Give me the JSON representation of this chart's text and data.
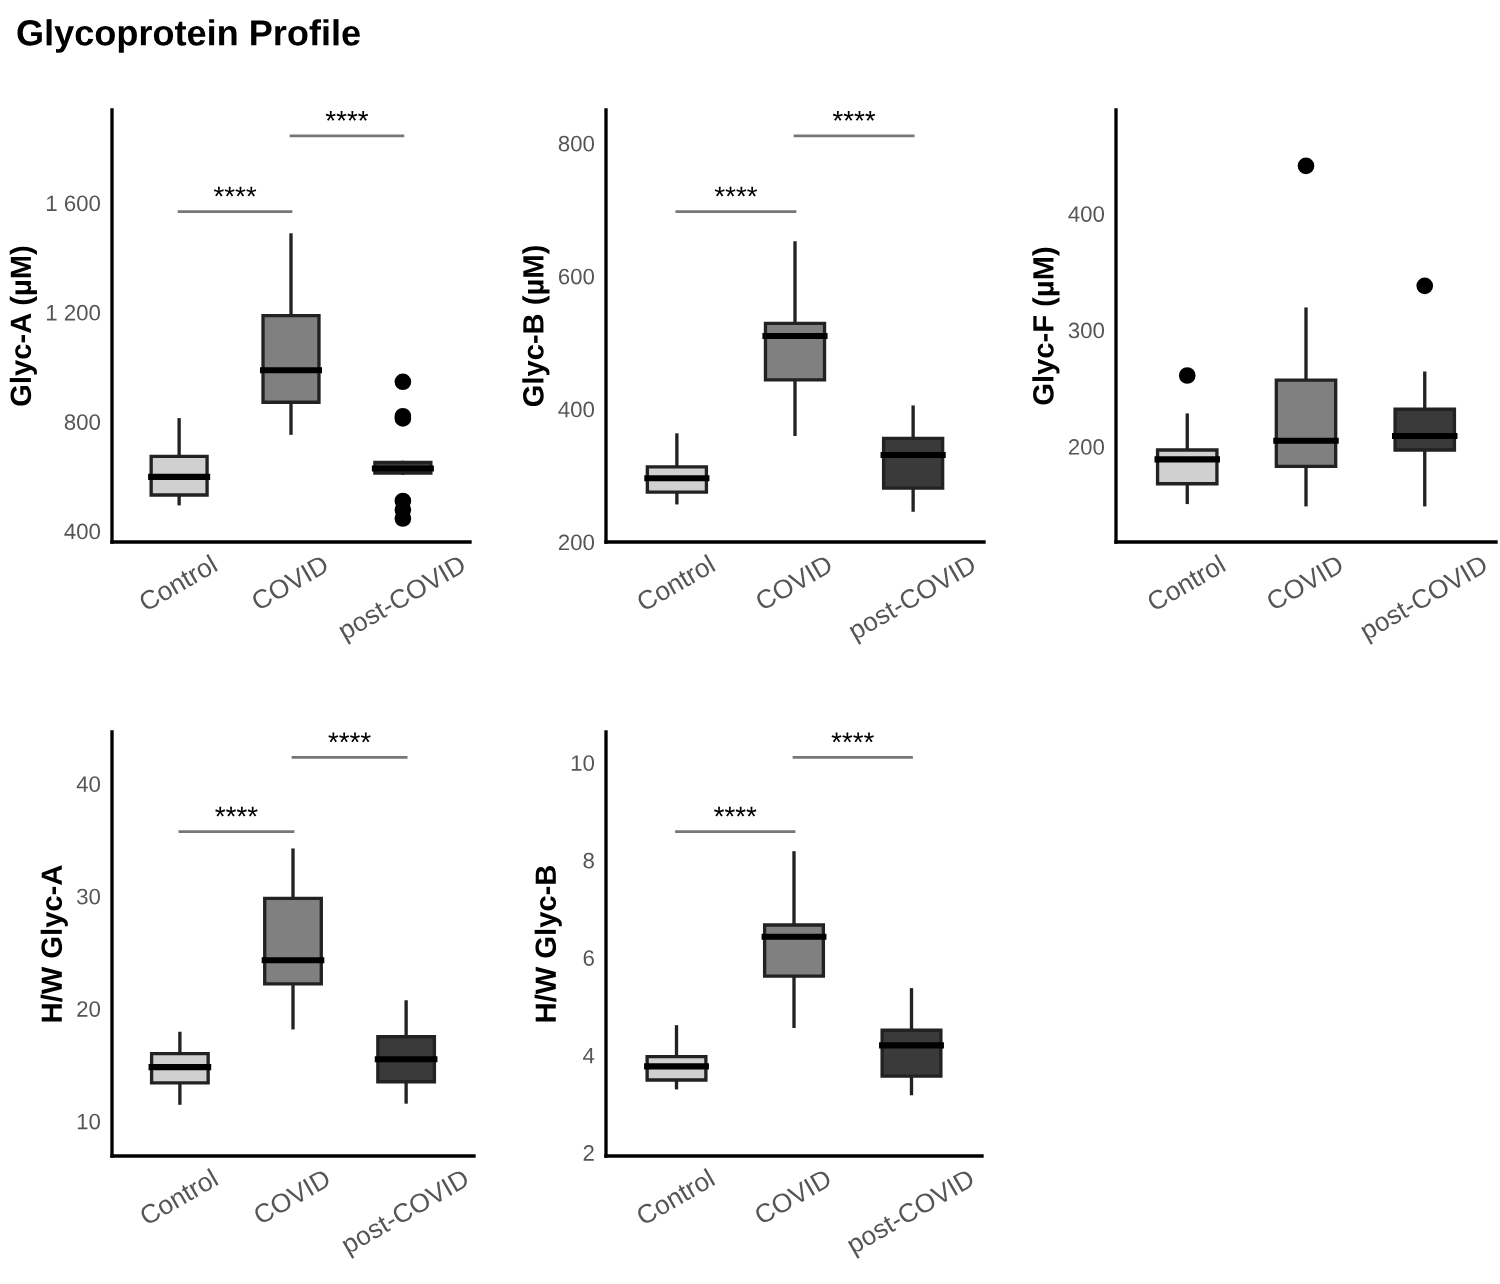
{
  "chart_data": [
    {
      "type": "box",
      "title": "Glycoprotein Profile",
      "ylabel": "Glyc-A (µM)",
      "categories": [
        "Control",
        "COVID",
        "post-COVID"
      ],
      "colors": [
        "#d0d0d0",
        "#808080",
        "#3a3a3a"
      ],
      "boxes": [
        {
          "low": 500,
          "q1": 532,
          "median": 598,
          "q3": 673,
          "high": 807
        },
        {
          "low": 758,
          "q1": 871,
          "median": 988,
          "q3": 1188,
          "high": 1483
        },
        {
          "low": 612,
          "q1": 612,
          "median": 629,
          "q3": 651,
          "high": 651,
          "outliers": [
            946,
            820,
            812,
            510,
            478,
            446
          ]
        }
      ],
      "ylim": [
        360,
        1940
      ],
      "yticks": [
        {
          "value": 400,
          "label": "400"
        },
        {
          "value": 800,
          "label": "800"
        },
        {
          "value": 1200,
          "label": "1 200"
        },
        {
          "value": 1600,
          "label": "1 600"
        }
      ],
      "annotations": [
        "****",
        "****"
      ]
    },
    {
      "type": "box",
      "ylabel": "Glyc-B (µM)",
      "categories": [
        "Control",
        "COVID",
        "post-COVID"
      ],
      "colors": [
        "#d0d0d0",
        "#808080",
        "#3a3a3a"
      ],
      "boxes": [
        {
          "low": 259,
          "q1": 275,
          "median": 296,
          "q3": 313,
          "high": 361
        },
        {
          "low": 362,
          "q1": 444,
          "median": 510,
          "q3": 529,
          "high": 650
        },
        {
          "low": 248,
          "q1": 281,
          "median": 331,
          "q3": 356,
          "high": 403
        }
      ],
      "ylim": [
        200,
        850
      ],
      "yticks": [
        200,
        400,
        600,
        800
      ],
      "annotations": [
        "****",
        "****"
      ]
    },
    {
      "type": "box",
      "ylabel": "Glyc-F (µM)",
      "categories": [
        "Control",
        "COVID",
        "post-COVID"
      ],
      "colors": [
        "#d0d0d0",
        "#808080",
        "#3a3a3a"
      ],
      "boxes": [
        {
          "low": 152,
          "q1": 168,
          "median": 189,
          "q3": 197,
          "high": 227,
          "outliers": [
            261
          ]
        },
        {
          "low": 150,
          "q1": 183,
          "median": 205,
          "q3": 257,
          "high": 318,
          "outliers": [
            441
          ]
        },
        {
          "low": 150,
          "q1": 197,
          "median": 209,
          "q3": 232,
          "high": 263,
          "outliers": [
            338
          ]
        }
      ],
      "ylim": [
        118,
        489
      ],
      "yticks": [
        200,
        300,
        400
      ]
    },
    {
      "type": "box",
      "ylabel": "H/W Glyc-A",
      "categories": [
        "Control",
        "COVID",
        "post-COVID"
      ],
      "colors": [
        "#d0d0d0",
        "#808080",
        "#3a3a3a"
      ],
      "boxes": [
        {
          "low": 11.6,
          "q1": 13.4,
          "median": 14.8,
          "q3": 16.0,
          "high": 17.8
        },
        {
          "low": 18.3,
          "q1": 22.2,
          "median": 24.3,
          "q3": 29.8,
          "high": 34.1
        },
        {
          "low": 11.7,
          "q1": 13.5,
          "median": 15.5,
          "q3": 17.5,
          "high": 20.6
        }
      ],
      "ylim": [
        6.9,
        44.6
      ],
      "yticks": [
        10,
        20,
        30,
        40
      ],
      "annotations": [
        "****",
        "****"
      ]
    },
    {
      "type": "box",
      "ylabel": "H/W Glyc-B",
      "categories": [
        "Control",
        "COVID",
        "post-COVID"
      ],
      "colors": [
        "#d0d0d0",
        "#808080",
        "#3a3a3a"
      ],
      "boxes": [
        {
          "low": 3.33,
          "q1": 3.49,
          "median": 3.77,
          "q3": 3.97,
          "high": 4.58
        },
        {
          "low": 4.59,
          "q1": 5.62,
          "median": 6.43,
          "q3": 6.67,
          "high": 8.15
        },
        {
          "low": 3.21,
          "q1": 3.57,
          "median": 4.2,
          "q3": 4.51,
          "high": 5.34
        }
      ],
      "ylim": [
        1.93,
        10.63
      ],
      "yticks": [
        2,
        4,
        6,
        8,
        10
      ],
      "annotations": [
        "****",
        "****"
      ]
    }
  ]
}
